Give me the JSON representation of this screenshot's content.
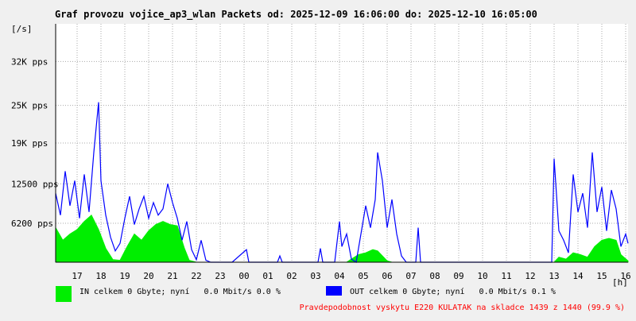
{
  "chart_data": {
    "type": "line",
    "title": "Graf provozu vojice_ap3_wlan Packets od: 2025-12-09 16:06:00 do: 2025-12-10 16:05:00",
    "y_unit_label": "[/s]",
    "x_unit_label": "[h]",
    "ylim": [
      0,
      38000
    ],
    "xlim": [
      16.1,
      40.1
    ],
    "y_ticks": [
      {
        "value": 6200,
        "label": "6200 pps"
      },
      {
        "value": 12500,
        "label": "12500 pps"
      },
      {
        "value": 19000,
        "label": "19K pps"
      },
      {
        "value": 25000,
        "label": "25K pps"
      },
      {
        "value": 32000,
        "label": "32K pps"
      }
    ],
    "x_ticks": [
      {
        "value": 17,
        "label": "17"
      },
      {
        "value": 18,
        "label": "18"
      },
      {
        "value": 19,
        "label": "19"
      },
      {
        "value": 20,
        "label": "20"
      },
      {
        "value": 21,
        "label": "21"
      },
      {
        "value": 22,
        "label": "22"
      },
      {
        "value": 23,
        "label": "23"
      },
      {
        "value": 24,
        "label": "00"
      },
      {
        "value": 25,
        "label": "01"
      },
      {
        "value": 26,
        "label": "02"
      },
      {
        "value": 27,
        "label": "03"
      },
      {
        "value": 28,
        "label": "04"
      },
      {
        "value": 29,
        "label": "05"
      },
      {
        "value": 30,
        "label": "06"
      },
      {
        "value": 31,
        "label": "07"
      },
      {
        "value": 32,
        "label": "08"
      },
      {
        "value": 33,
        "label": "09"
      },
      {
        "value": 34,
        "label": "10"
      },
      {
        "value": 35,
        "label": "11"
      },
      {
        "value": 36,
        "label": "12"
      },
      {
        "value": 37,
        "label": "13"
      },
      {
        "value": 38,
        "label": "14"
      },
      {
        "value": 39,
        "label": "15"
      },
      {
        "value": 40,
        "label": "16"
      }
    ],
    "series": [
      {
        "name": "IN celkem 0 Gbyte; nyní   0.0 Mbit/s 0.0 %",
        "color": "#00ee00",
        "style": "area",
        "points": [
          [
            16.1,
            5500
          ],
          [
            16.4,
            3500
          ],
          [
            16.7,
            4500
          ],
          [
            17.0,
            5200
          ],
          [
            17.3,
            6500
          ],
          [
            17.6,
            7500
          ],
          [
            17.9,
            5200
          ],
          [
            18.2,
            2200
          ],
          [
            18.5,
            400
          ],
          [
            18.8,
            300
          ],
          [
            19.1,
            2500
          ],
          [
            19.4,
            4500
          ],
          [
            19.7,
            3500
          ],
          [
            20.0,
            5000
          ],
          [
            20.3,
            6000
          ],
          [
            20.6,
            6500
          ],
          [
            20.9,
            6000
          ],
          [
            21.2,
            5800
          ],
          [
            21.5,
            2200
          ],
          [
            21.7,
            300
          ],
          [
            22.0,
            0
          ],
          [
            28.3,
            0
          ],
          [
            28.5,
            500
          ],
          [
            28.8,
            1200
          ],
          [
            29.1,
            1500
          ],
          [
            29.4,
            2000
          ],
          [
            29.6,
            1800
          ],
          [
            29.8,
            1000
          ],
          [
            30.0,
            200
          ],
          [
            30.2,
            0
          ],
          [
            37.0,
            0
          ],
          [
            37.2,
            800
          ],
          [
            37.5,
            500
          ],
          [
            37.8,
            1500
          ],
          [
            38.1,
            1200
          ],
          [
            38.4,
            800
          ],
          [
            38.7,
            2500
          ],
          [
            39.0,
            3500
          ],
          [
            39.3,
            3800
          ],
          [
            39.6,
            3500
          ],
          [
            39.8,
            1200
          ],
          [
            40.1,
            200
          ]
        ]
      },
      {
        "name": "OUT celkem 0 Gbyte; nyní   0.0 Mbit/s 0.1 %",
        "color": "#0000ff",
        "style": "line",
        "points": [
          [
            16.1,
            11000
          ],
          [
            16.3,
            7500
          ],
          [
            16.5,
            14500
          ],
          [
            16.7,
            9000
          ],
          [
            16.9,
            13000
          ],
          [
            17.1,
            7000
          ],
          [
            17.3,
            14000
          ],
          [
            17.5,
            8000
          ],
          [
            17.7,
            17500
          ],
          [
            17.9,
            25500
          ],
          [
            18.0,
            13000
          ],
          [
            18.2,
            7500
          ],
          [
            18.4,
            4000
          ],
          [
            18.6,
            1800
          ],
          [
            18.8,
            3000
          ],
          [
            19.0,
            7000
          ],
          [
            19.2,
            10500
          ],
          [
            19.4,
            6000
          ],
          [
            19.6,
            8500
          ],
          [
            19.8,
            10500
          ],
          [
            20.0,
            7000
          ],
          [
            20.2,
            9500
          ],
          [
            20.4,
            7500
          ],
          [
            20.6,
            8500
          ],
          [
            20.8,
            12500
          ],
          [
            21.0,
            9500
          ],
          [
            21.2,
            7000
          ],
          [
            21.4,
            3500
          ],
          [
            21.6,
            6500
          ],
          [
            21.8,
            2000
          ],
          [
            22.0,
            400
          ],
          [
            22.2,
            3500
          ],
          [
            22.4,
            300
          ],
          [
            22.6,
            0
          ],
          [
            23.5,
            0
          ],
          [
            24.1,
            2000
          ],
          [
            24.2,
            0
          ],
          [
            25.4,
            0
          ],
          [
            25.5,
            1000
          ],
          [
            25.6,
            0
          ],
          [
            27.1,
            0
          ],
          [
            27.2,
            2200
          ],
          [
            27.3,
            0
          ],
          [
            27.8,
            0
          ],
          [
            28.0,
            6500
          ],
          [
            28.1,
            2500
          ],
          [
            28.3,
            4500
          ],
          [
            28.5,
            500
          ],
          [
            28.7,
            0
          ],
          [
            28.9,
            4500
          ],
          [
            29.1,
            9000
          ],
          [
            29.3,
            5500
          ],
          [
            29.5,
            10000
          ],
          [
            29.6,
            17500
          ],
          [
            29.8,
            13000
          ],
          [
            30.0,
            5500
          ],
          [
            30.2,
            10000
          ],
          [
            30.4,
            4500
          ],
          [
            30.6,
            1000
          ],
          [
            30.8,
            0
          ],
          [
            31.2,
            0
          ],
          [
            31.3,
            5500
          ],
          [
            31.4,
            0
          ],
          [
            36.9,
            0
          ],
          [
            37.0,
            16500
          ],
          [
            37.2,
            5000
          ],
          [
            37.4,
            3500
          ],
          [
            37.6,
            1500
          ],
          [
            37.8,
            14000
          ],
          [
            38.0,
            8000
          ],
          [
            38.2,
            11000
          ],
          [
            38.4,
            5500
          ],
          [
            38.6,
            17500
          ],
          [
            38.8,
            8000
          ],
          [
            39.0,
            12000
          ],
          [
            39.2,
            5000
          ],
          [
            39.4,
            11500
          ],
          [
            39.6,
            8500
          ],
          [
            39.8,
            2500
          ],
          [
            40.0,
            4500
          ],
          [
            40.1,
            3000
          ]
        ]
      }
    ],
    "legend_placement": "bottom-left",
    "grid": "dotted"
  },
  "footer_note": "Pravdepodobnost vyskytu E220 KULATAK na skladce 1439 z 1440 (99.9 %)",
  "colors": {
    "background": "#f0f0f0",
    "plot_background": "#ffffff",
    "footer_note": "#ff0000"
  }
}
